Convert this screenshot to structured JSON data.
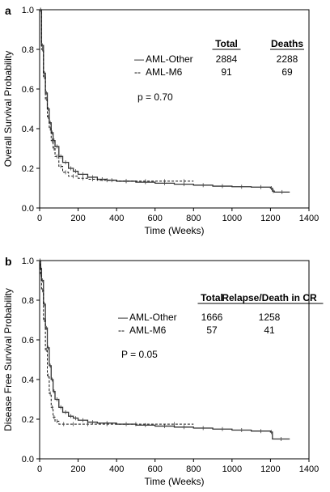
{
  "chart_data": [
    {
      "type": "line",
      "panel": "a",
      "xlabel": "Time (Weeks)",
      "ylabel": "Overall Survival Probability",
      "xlim": [
        0,
        1400
      ],
      "ylim": [
        0,
        1.0
      ],
      "xticks": [
        "0",
        "200",
        "400",
        "600",
        "800",
        "1000",
        "1200",
        "1400"
      ],
      "yticks": [
        "0.0",
        "0.2",
        "0.4",
        "0.6",
        "0.8",
        "1.0"
      ],
      "legend": {
        "col_total": "Total",
        "col_events": "Deaths",
        "rows": [
          {
            "marker": "—",
            "name": "AML-Other",
            "total": "2884",
            "events": "2288"
          },
          {
            "marker": "--",
            "name": "AML-M6",
            "total": "91",
            "events": "69"
          }
        ]
      },
      "annotation": "p = 0.70",
      "series": [
        {
          "name": "AML-Other",
          "style": "solid",
          "x": [
            0,
            10,
            20,
            30,
            40,
            50,
            60,
            70,
            80,
            100,
            120,
            150,
            175,
            200,
            250,
            300,
            350,
            400,
            500,
            600,
            700,
            800,
            900,
            1000,
            1100,
            1200,
            1210,
            1220,
            1300
          ],
          "y": [
            1.0,
            0.82,
            0.68,
            0.58,
            0.5,
            0.43,
            0.38,
            0.34,
            0.31,
            0.26,
            0.23,
            0.2,
            0.185,
            0.17,
            0.155,
            0.145,
            0.14,
            0.135,
            0.13,
            0.125,
            0.12,
            0.115,
            0.11,
            0.107,
            0.105,
            0.1,
            0.085,
            0.08,
            0.08
          ]
        },
        {
          "name": "AML-M6",
          "style": "dashed",
          "x": [
            0,
            10,
            20,
            30,
            40,
            50,
            60,
            70,
            80,
            100,
            120,
            150,
            200,
            250,
            300,
            400,
            500,
            600,
            700,
            800
          ],
          "y": [
            1.0,
            0.8,
            0.66,
            0.55,
            0.46,
            0.4,
            0.34,
            0.3,
            0.26,
            0.21,
            0.18,
            0.16,
            0.15,
            0.145,
            0.14,
            0.135,
            0.135,
            0.135,
            0.135,
            0.135
          ]
        }
      ]
    },
    {
      "type": "line",
      "panel": "b",
      "xlabel": "Time (Weeks)",
      "ylabel": "Disease Free Survival Probability",
      "xlim": [
        0,
        1400
      ],
      "ylim": [
        0,
        1.0
      ],
      "xticks": [
        "0",
        "200",
        "400",
        "600",
        "800",
        "1000",
        "1200",
        "1400"
      ],
      "yticks": [
        "0.0",
        "0.2",
        "0.4",
        "0.6",
        "0.8",
        "1.0"
      ],
      "legend": {
        "col_total": "Total",
        "col_events": "Relapse/Death in CR",
        "rows": [
          {
            "marker": "—",
            "name": "AML-Other",
            "total": "1666",
            "events": "1258"
          },
          {
            "marker": "--",
            "name": "AML-M6",
            "total": "57",
            "events": "41"
          }
        ]
      },
      "annotation": "P = 0.05",
      "series": [
        {
          "name": "AML-Other",
          "style": "solid",
          "x": [
            0,
            5,
            10,
            20,
            30,
            40,
            50,
            60,
            70,
            80,
            100,
            120,
            150,
            175,
            200,
            250,
            300,
            400,
            500,
            600,
            700,
            800,
            900,
            1000,
            1100,
            1200,
            1210,
            1300
          ],
          "y": [
            1.0,
            0.96,
            0.9,
            0.78,
            0.66,
            0.56,
            0.47,
            0.4,
            0.34,
            0.3,
            0.26,
            0.235,
            0.215,
            0.205,
            0.195,
            0.185,
            0.18,
            0.175,
            0.17,
            0.165,
            0.16,
            0.155,
            0.15,
            0.145,
            0.14,
            0.135,
            0.1,
            0.1
          ]
        },
        {
          "name": "AML-M6",
          "style": "dashed",
          "x": [
            0,
            5,
            10,
            20,
            30,
            40,
            50,
            60,
            70,
            80,
            100,
            150,
            200,
            300,
            400,
            600,
            800
          ],
          "y": [
            1.0,
            0.93,
            0.85,
            0.7,
            0.55,
            0.42,
            0.33,
            0.26,
            0.21,
            0.19,
            0.175,
            0.175,
            0.175,
            0.175,
            0.175,
            0.175,
            0.175
          ]
        }
      ]
    }
  ]
}
